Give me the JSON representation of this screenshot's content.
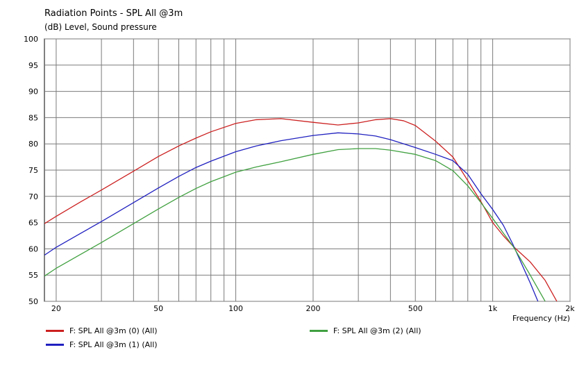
{
  "chart_data": {
    "type": "line",
    "title": "Radiation Points - SPL All @3m",
    "subtitle": "(dB)  Level, Sound pressure",
    "xlabel": "Frequency  (Hz)",
    "x_scale": "log",
    "xlim": [
      18,
      2000
    ],
    "ylim": [
      50,
      100
    ],
    "y_ticks": [
      50,
      55,
      60,
      65,
      70,
      75,
      80,
      85,
      90,
      95,
      100
    ],
    "x_tick_labels": [
      {
        "value": 20,
        "label": "20"
      },
      {
        "value": 50,
        "label": "50"
      },
      {
        "value": 100,
        "label": "100"
      },
      {
        "value": 200,
        "label": "200"
      },
      {
        "value": 500,
        "label": "500"
      },
      {
        "value": 1000,
        "label": "1k"
      },
      {
        "value": 2000,
        "label": "2k"
      }
    ],
    "x_grid": [
      20,
      30,
      40,
      50,
      60,
      70,
      80,
      90,
      100,
      200,
      300,
      400,
      500,
      600,
      700,
      800,
      900,
      1000,
      2000
    ],
    "grid": true,
    "legend_position": "bottom",
    "series": [
      {
        "name": "F: SPL All @3m (0)  (All)",
        "color": "#cc2020",
        "points": [
          [
            18,
            64.8
          ],
          [
            20,
            66.2
          ],
          [
            25,
            69
          ],
          [
            30,
            71.2
          ],
          [
            40,
            74.8
          ],
          [
            50,
            77.6
          ],
          [
            60,
            79.6
          ],
          [
            70,
            81.1
          ],
          [
            80,
            82.3
          ],
          [
            100,
            83.9
          ],
          [
            120,
            84.6
          ],
          [
            150,
            84.8
          ],
          [
            200,
            84.1
          ],
          [
            250,
            83.6
          ],
          [
            300,
            84
          ],
          [
            350,
            84.6
          ],
          [
            400,
            84.8
          ],
          [
            450,
            84.4
          ],
          [
            500,
            83.5
          ],
          [
            600,
            80.5
          ],
          [
            700,
            77.5
          ],
          [
            800,
            73
          ],
          [
            900,
            69
          ],
          [
            1000,
            65
          ],
          [
            1100,
            62.5
          ],
          [
            1200,
            60.5
          ],
          [
            1400,
            57.5
          ],
          [
            1600,
            54
          ],
          [
            1800,
            49.5
          ]
        ]
      },
      {
        "name": "F: SPL All @3m (1)  (All)",
        "color": "#2020c0",
        "points": [
          [
            18,
            58.8
          ],
          [
            20,
            60.3
          ],
          [
            25,
            63
          ],
          [
            30,
            65.2
          ],
          [
            40,
            68.8
          ],
          [
            50,
            71.6
          ],
          [
            60,
            73.8
          ],
          [
            70,
            75.5
          ],
          [
            80,
            76.7
          ],
          [
            100,
            78.5
          ],
          [
            120,
            79.6
          ],
          [
            150,
            80.6
          ],
          [
            200,
            81.6
          ],
          [
            250,
            82.1
          ],
          [
            300,
            81.9
          ],
          [
            350,
            81.5
          ],
          [
            400,
            80.8
          ],
          [
            500,
            79.3
          ],
          [
            600,
            78
          ],
          [
            700,
            76.8
          ],
          [
            800,
            74.2
          ],
          [
            900,
            70.5
          ],
          [
            1000,
            67.5
          ],
          [
            1100,
            64.5
          ],
          [
            1200,
            60.8
          ],
          [
            1400,
            53.5
          ],
          [
            1500,
            50
          ]
        ]
      },
      {
        "name": "F: SPL All @3m (2)  (All)",
        "color": "#40a040",
        "points": [
          [
            18,
            54.8
          ],
          [
            20,
            56.3
          ],
          [
            25,
            59
          ],
          [
            30,
            61.2
          ],
          [
            40,
            64.8
          ],
          [
            50,
            67.6
          ],
          [
            60,
            69.8
          ],
          [
            70,
            71.5
          ],
          [
            80,
            72.8
          ],
          [
            100,
            74.6
          ],
          [
            120,
            75.6
          ],
          [
            150,
            76.6
          ],
          [
            200,
            78
          ],
          [
            250,
            78.9
          ],
          [
            300,
            79.1
          ],
          [
            350,
            79.1
          ],
          [
            400,
            78.8
          ],
          [
            500,
            78
          ],
          [
            600,
            76.8
          ],
          [
            700,
            74.9
          ],
          [
            800,
            72
          ],
          [
            900,
            68.8
          ],
          [
            1000,
            65.8
          ],
          [
            1100,
            63
          ],
          [
            1200,
            60.5
          ],
          [
            1400,
            55
          ],
          [
            1600,
            50
          ]
        ]
      }
    ]
  }
}
